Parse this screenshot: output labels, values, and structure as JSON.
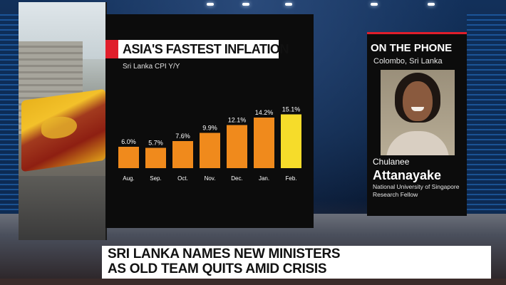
{
  "chart_panel": {
    "title": "ASIA'S FASTEST INFLATION",
    "subtitle": "Sri Lanka CPI Y/Y"
  },
  "chart_data": {
    "type": "bar",
    "title": "ASIA'S FASTEST INFLATION",
    "subtitle": "Sri Lanka CPI Y/Y",
    "categories": [
      "Aug.",
      "Sep.",
      "Oct.",
      "Nov.",
      "Dec.",
      "Jan.",
      "Feb."
    ],
    "values": [
      6.0,
      5.7,
      7.6,
      9.9,
      12.1,
      14.2,
      15.1
    ],
    "data_labels": [
      "6.0%",
      "5.7%",
      "7.6%",
      "9.9%",
      "12.1%",
      "14.2%",
      "15.1%"
    ],
    "ylim": [
      0,
      16
    ],
    "grid": false,
    "colors": {
      "bar": "#f08a1c",
      "highlight_bar": "#f6dc2a",
      "text": "#ffffff"
    },
    "highlight_index": 6
  },
  "phone_panel": {
    "heading": "ON THE PHONE",
    "location": "Colombo, Sri Lanka",
    "guest_first_name": "Chulanee",
    "guest_last_name": "Attanayake",
    "guest_role_line1": "National University of Singapore",
    "guest_role_line2": "Research Fellow"
  },
  "lower_third": {
    "line1": "SRI LANKA NAMES NEW MINISTERS",
    "line2": "AS OLD TEAM QUITS AMID CRISIS"
  },
  "colors": {
    "accent_red": "#e01e2b",
    "panel_bg": "#0c0c0c"
  }
}
